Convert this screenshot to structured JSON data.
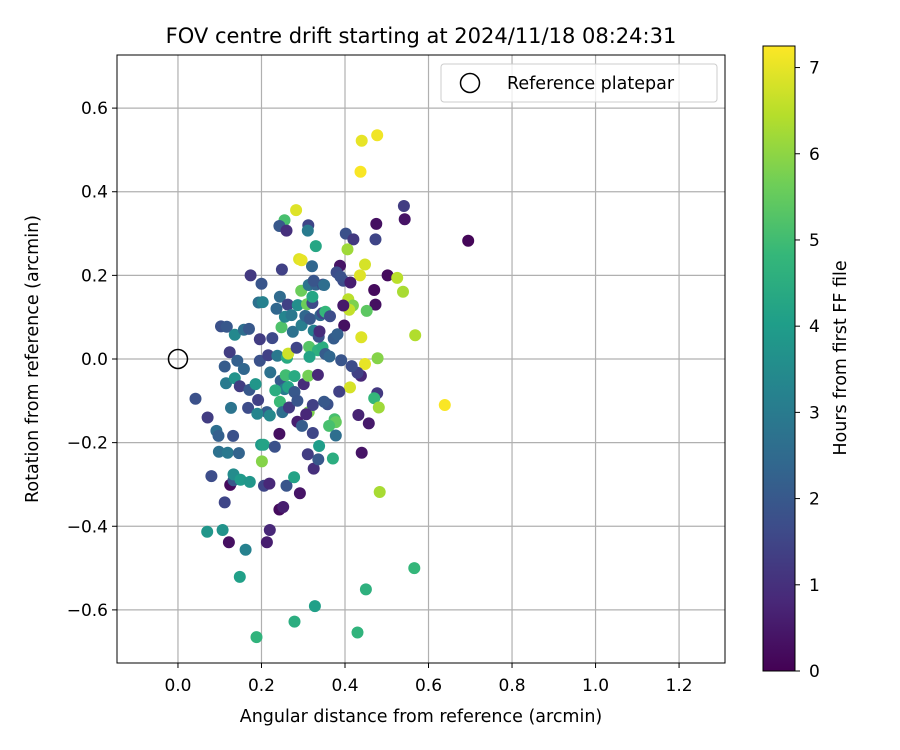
{
  "chart_data": {
    "type": "scatter",
    "title": "FOV centre drift starting at 2024/11/18 08:24:31",
    "xlabel": "Angular distance from reference (arcmin)",
    "ylabel": "Rotation from reference (arcmin)",
    "xlim": [
      -0.146,
      1.31
    ],
    "ylim": [
      -0.727,
      0.727
    ],
    "xticks": [
      0.0,
      0.2,
      0.4,
      0.6,
      0.8,
      1.0,
      1.2
    ],
    "xtick_labels": [
      "0.0",
      "0.2",
      "0.4",
      "0.6",
      "0.8",
      "1.0",
      "1.2"
    ],
    "yticks": [
      -0.6,
      -0.4,
      -0.2,
      0.0,
      0.2,
      0.4,
      0.6
    ],
    "ytick_labels": [
      "−0.6",
      "−0.4",
      "−0.2",
      "0.0",
      "0.2",
      "0.4",
      "0.6"
    ],
    "grid": true,
    "legend": {
      "position": "upper-right",
      "entries": [
        "Reference platepar"
      ]
    },
    "reference_point": {
      "x": 0.0,
      "y": 0.0,
      "marker": "open-circle"
    },
    "colorbar": {
      "label": "Hours from first FF file",
      "colormap": "viridis",
      "min": 0,
      "max": 7.25,
      "ticks": [
        0,
        1,
        2,
        3,
        4,
        5,
        6,
        7
      ],
      "tick_labels": [
        "0",
        "1",
        "2",
        "3",
        "4",
        "5",
        "6",
        "7"
      ]
    },
    "colormap_stops": [
      "#440154",
      "#482878",
      "#3e4a89",
      "#31688e",
      "#26828e",
      "#1f9e89",
      "#35b779",
      "#6ece58",
      "#b5de2b",
      "#fde725"
    ],
    "points": [
      [
        0.695,
        0.283,
        0.1
      ],
      [
        0.44,
        0.522,
        7.0
      ],
      [
        0.477,
        0.535,
        7.1
      ],
      [
        0.437,
        0.448,
        7.2
      ],
      [
        0.283,
        0.356,
        6.9
      ],
      [
        0.541,
        0.366,
        1.3
      ],
      [
        0.543,
        0.334,
        0.4
      ],
      [
        0.475,
        0.323,
        0.3
      ],
      [
        0.473,
        0.286,
        1.5
      ],
      [
        0.255,
        0.332,
        5.1
      ],
      [
        0.243,
        0.318,
        2.0
      ],
      [
        0.26,
        0.307,
        1.0
      ],
      [
        0.312,
        0.32,
        1.5
      ],
      [
        0.311,
        0.307,
        3.0
      ],
      [
        0.33,
        0.27,
        4.3
      ],
      [
        0.402,
        0.3,
        1.8
      ],
      [
        0.42,
        0.286,
        1.2
      ],
      [
        0.406,
        0.262,
        6.2
      ],
      [
        0.502,
        0.2,
        0.2
      ],
      [
        0.525,
        0.194,
        6.5
      ],
      [
        0.539,
        0.161,
        6.3
      ],
      [
        0.473,
        0.13,
        0.3
      ],
      [
        0.47,
        0.165,
        0.2
      ],
      [
        0.448,
        0.226,
        6.8
      ],
      [
        0.436,
        0.2,
        6.9
      ],
      [
        0.388,
        0.223,
        0.4
      ],
      [
        0.396,
        0.187,
        1.7
      ],
      [
        0.408,
        0.143,
        6.5
      ],
      [
        0.419,
        0.128,
        5.8
      ],
      [
        0.41,
        0.118,
        6.6
      ],
      [
        0.452,
        0.115,
        5.4
      ],
      [
        0.398,
        0.08,
        0.3
      ],
      [
        0.439,
        0.052,
        6.9
      ],
      [
        0.568,
        0.057,
        6.4
      ],
      [
        0.478,
        0.002,
        5.9
      ],
      [
        0.448,
        -0.012,
        7.0
      ],
      [
        0.438,
        -0.04,
        0.8
      ],
      [
        0.43,
        -0.033,
        1.4
      ],
      [
        0.412,
        -0.068,
        6.8
      ],
      [
        0.477,
        -0.082,
        1.2
      ],
      [
        0.47,
        -0.094,
        4.8
      ],
      [
        0.481,
        -0.116,
        6.2
      ],
      [
        0.639,
        -0.11,
        7.2
      ],
      [
        0.432,
        -0.134,
        0.7
      ],
      [
        0.457,
        -0.154,
        0.5
      ],
      [
        0.44,
        -0.224,
        0.4
      ],
      [
        0.483,
        -0.318,
        6.3
      ],
      [
        0.566,
        -0.5,
        4.8
      ],
      [
        0.45,
        -0.551,
        4.6
      ],
      [
        0.43,
        -0.654,
        4.7
      ],
      [
        0.328,
        -0.591,
        4.1
      ],
      [
        0.279,
        -0.628,
        4.5
      ],
      [
        0.188,
        -0.665,
        4.7
      ],
      [
        0.148,
        -0.521,
        4.1
      ],
      [
        0.162,
        -0.456,
        3.2
      ],
      [
        0.07,
        -0.413,
        3.8
      ],
      [
        0.107,
        -0.409,
        3.7
      ],
      [
        0.122,
        -0.438,
        0.3
      ],
      [
        0.213,
        -0.438,
        0.6
      ],
      [
        0.22,
        -0.409,
        0.8
      ],
      [
        0.243,
        -0.36,
        0.2
      ],
      [
        0.252,
        -0.354,
        0.6
      ],
      [
        0.112,
        -0.343,
        1.5
      ],
      [
        0.125,
        -0.301,
        0.2
      ],
      [
        0.133,
        -0.29,
        2.0
      ],
      [
        0.133,
        -0.276,
        3.5
      ],
      [
        0.15,
        -0.289,
        3.9
      ],
      [
        0.172,
        -0.294,
        3.8
      ],
      [
        0.206,
        -0.303,
        1.5
      ],
      [
        0.219,
        -0.298,
        0.8
      ],
      [
        0.26,
        -0.303,
        1.9
      ],
      [
        0.278,
        -0.283,
        4.2
      ],
      [
        0.292,
        -0.321,
        0.4
      ],
      [
        0.08,
        -0.28,
        1.7
      ],
      [
        0.098,
        -0.222,
        2.7
      ],
      [
        0.119,
        -0.224,
        2.9
      ],
      [
        0.146,
        -0.225,
        2.3
      ],
      [
        0.199,
        -0.205,
        3.9
      ],
      [
        0.205,
        -0.205,
        4.2
      ],
      [
        0.201,
        -0.245,
        5.9
      ],
      [
        0.232,
        -0.21,
        1.8
      ],
      [
        0.243,
        -0.179,
        0.3
      ],
      [
        0.311,
        -0.228,
        1.3
      ],
      [
        0.325,
        -0.262,
        1.0
      ],
      [
        0.336,
        -0.24,
        2.0
      ],
      [
        0.338,
        -0.208,
        4.0
      ],
      [
        0.371,
        -0.238,
        4.5
      ],
      [
        0.323,
        -0.177,
        1.5
      ],
      [
        0.042,
        -0.095,
        1.8
      ],
      [
        0.071,
        -0.14,
        1.3
      ],
      [
        0.092,
        -0.172,
        2.6
      ],
      [
        0.097,
        -0.184,
        2.2
      ],
      [
        0.132,
        -0.184,
        1.8
      ],
      [
        0.127,
        -0.117,
        2.8
      ],
      [
        0.168,
        -0.117,
        1.7
      ],
      [
        0.192,
        -0.098,
        1.4
      ],
      [
        0.213,
        -0.127,
        2.1
      ],
      [
        0.22,
        -0.135,
        3.4
      ],
      [
        0.244,
        -0.102,
        4.9
      ],
      [
        0.25,
        -0.127,
        2.6
      ],
      [
        0.266,
        -0.116,
        1.2
      ],
      [
        0.286,
        -0.15,
        0.6
      ],
      [
        0.297,
        -0.16,
        2.1
      ],
      [
        0.313,
        -0.127,
        5.8
      ],
      [
        0.323,
        -0.11,
        1.4
      ],
      [
        0.358,
        -0.108,
        1.8
      ],
      [
        0.375,
        -0.144,
        5.1
      ],
      [
        0.378,
        -0.151,
        5.5
      ],
      [
        0.386,
        -0.078,
        1.4
      ],
      [
        0.115,
        -0.058,
        3.0
      ],
      [
        0.136,
        -0.046,
        3.7
      ],
      [
        0.148,
        -0.065,
        1.3
      ],
      [
        0.171,
        -0.074,
        2.0
      ],
      [
        0.186,
        -0.06,
        3.8
      ],
      [
        0.221,
        -0.032,
        2.7
      ],
      [
        0.246,
        -0.052,
        2.1
      ],
      [
        0.255,
        -0.072,
        3.0
      ],
      [
        0.264,
        -0.067,
        4.2
      ],
      [
        0.279,
        -0.079,
        2.0
      ],
      [
        0.258,
        -0.039,
        5.0
      ],
      [
        0.279,
        -0.041,
        4.4
      ],
      [
        0.301,
        -0.06,
        0.9
      ],
      [
        0.312,
        -0.04,
        5.7
      ],
      [
        0.335,
        -0.038,
        0.8
      ],
      [
        0.112,
        -0.018,
        2.1
      ],
      [
        0.124,
        0.016,
        1.3
      ],
      [
        0.142,
        -0.004,
        2.2
      ],
      [
        0.158,
        -0.024,
        2.4
      ],
      [
        0.196,
        -0.004,
        1.8
      ],
      [
        0.216,
        0.009,
        1.4
      ],
      [
        0.238,
        0.008,
        2.9
      ],
      [
        0.261,
        0.003,
        4.4
      ],
      [
        0.264,
        0.013,
        6.7
      ],
      [
        0.284,
        0.027,
        1.5
      ],
      [
        0.314,
        0.029,
        5.3
      ],
      [
        0.335,
        0.021,
        4.6
      ],
      [
        0.346,
        0.028,
        4.5
      ],
      [
        0.353,
        0.012,
        2.1
      ],
      [
        0.391,
        -0.003,
        1.9
      ],
      [
        0.416,
        -0.017,
        1.7
      ],
      [
        0.103,
        0.078,
        1.8
      ],
      [
        0.117,
        0.077,
        2.0
      ],
      [
        0.136,
        0.058,
        3.4
      ],
      [
        0.158,
        0.07,
        2.6
      ],
      [
        0.17,
        0.072,
        2.0
      ],
      [
        0.196,
        0.047,
        1.3
      ],
      [
        0.226,
        0.05,
        1.6
      ],
      [
        0.248,
        0.076,
        5.2
      ],
      [
        0.256,
        0.101,
        3.3
      ],
      [
        0.275,
        0.065,
        2.7
      ],
      [
        0.296,
        0.081,
        3.1
      ],
      [
        0.305,
        0.103,
        2.4
      ],
      [
        0.316,
        0.096,
        2.0
      ],
      [
        0.325,
        0.068,
        3.2
      ],
      [
        0.337,
        0.053,
        1.8
      ],
      [
        0.339,
        0.066,
        0.9
      ],
      [
        0.373,
        0.049,
        2.1
      ],
      [
        0.382,
        0.059,
        2.2
      ],
      [
        0.193,
        0.135,
        2.7
      ],
      [
        0.203,
        0.136,
        3.2
      ],
      [
        0.236,
        0.12,
        2.4
      ],
      [
        0.244,
        0.149,
        2.5
      ],
      [
        0.263,
        0.13,
        1.4
      ],
      [
        0.272,
        0.105,
        2.9
      ],
      [
        0.287,
        0.129,
        3.6
      ],
      [
        0.309,
        0.131,
        5.6
      ],
      [
        0.322,
        0.134,
        1.6
      ],
      [
        0.341,
        0.105,
        2.4
      ],
      [
        0.346,
        0.11,
        1.6
      ],
      [
        0.353,
        0.113,
        4.8
      ],
      [
        0.364,
        0.102,
        1.7
      ],
      [
        0.295,
        0.163,
        5.6
      ],
      [
        0.313,
        0.177,
        2.8
      ],
      [
        0.322,
        0.149,
        4.3
      ],
      [
        0.33,
        0.178,
        2.3
      ],
      [
        0.347,
        0.178,
        1.5
      ],
      [
        0.38,
        0.207,
        1.7
      ],
      [
        0.389,
        0.197,
        1.8
      ],
      [
        0.413,
        0.183,
        0.6
      ],
      [
        0.2,
        0.18,
        1.9
      ],
      [
        0.174,
        0.2,
        1.2
      ],
      [
        0.249,
        0.214,
        1.4
      ],
      [
        0.29,
        0.239,
        6.9
      ],
      [
        0.296,
        0.236,
        7.0
      ],
      [
        0.321,
        0.222,
        2.4
      ],
      [
        0.325,
        0.187,
        1.9
      ],
      [
        0.35,
        0.177,
        2.6
      ],
      [
        0.396,
        0.128,
        0.5
      ],
      [
        0.363,
        0.006,
        2.4
      ],
      [
        0.286,
        -0.1,
        1.9
      ],
      [
        0.307,
        -0.132,
        0.8
      ],
      [
        0.35,
        -0.102,
        2.0
      ],
      [
        0.362,
        -0.16,
        5.1
      ],
      [
        0.378,
        -0.183,
        2.6
      ],
      [
        0.315,
        0.005,
        4.2
      ],
      [
        0.233,
        -0.075,
        4.5
      ],
      [
        0.19,
        -0.131,
        3.3
      ]
    ]
  }
}
